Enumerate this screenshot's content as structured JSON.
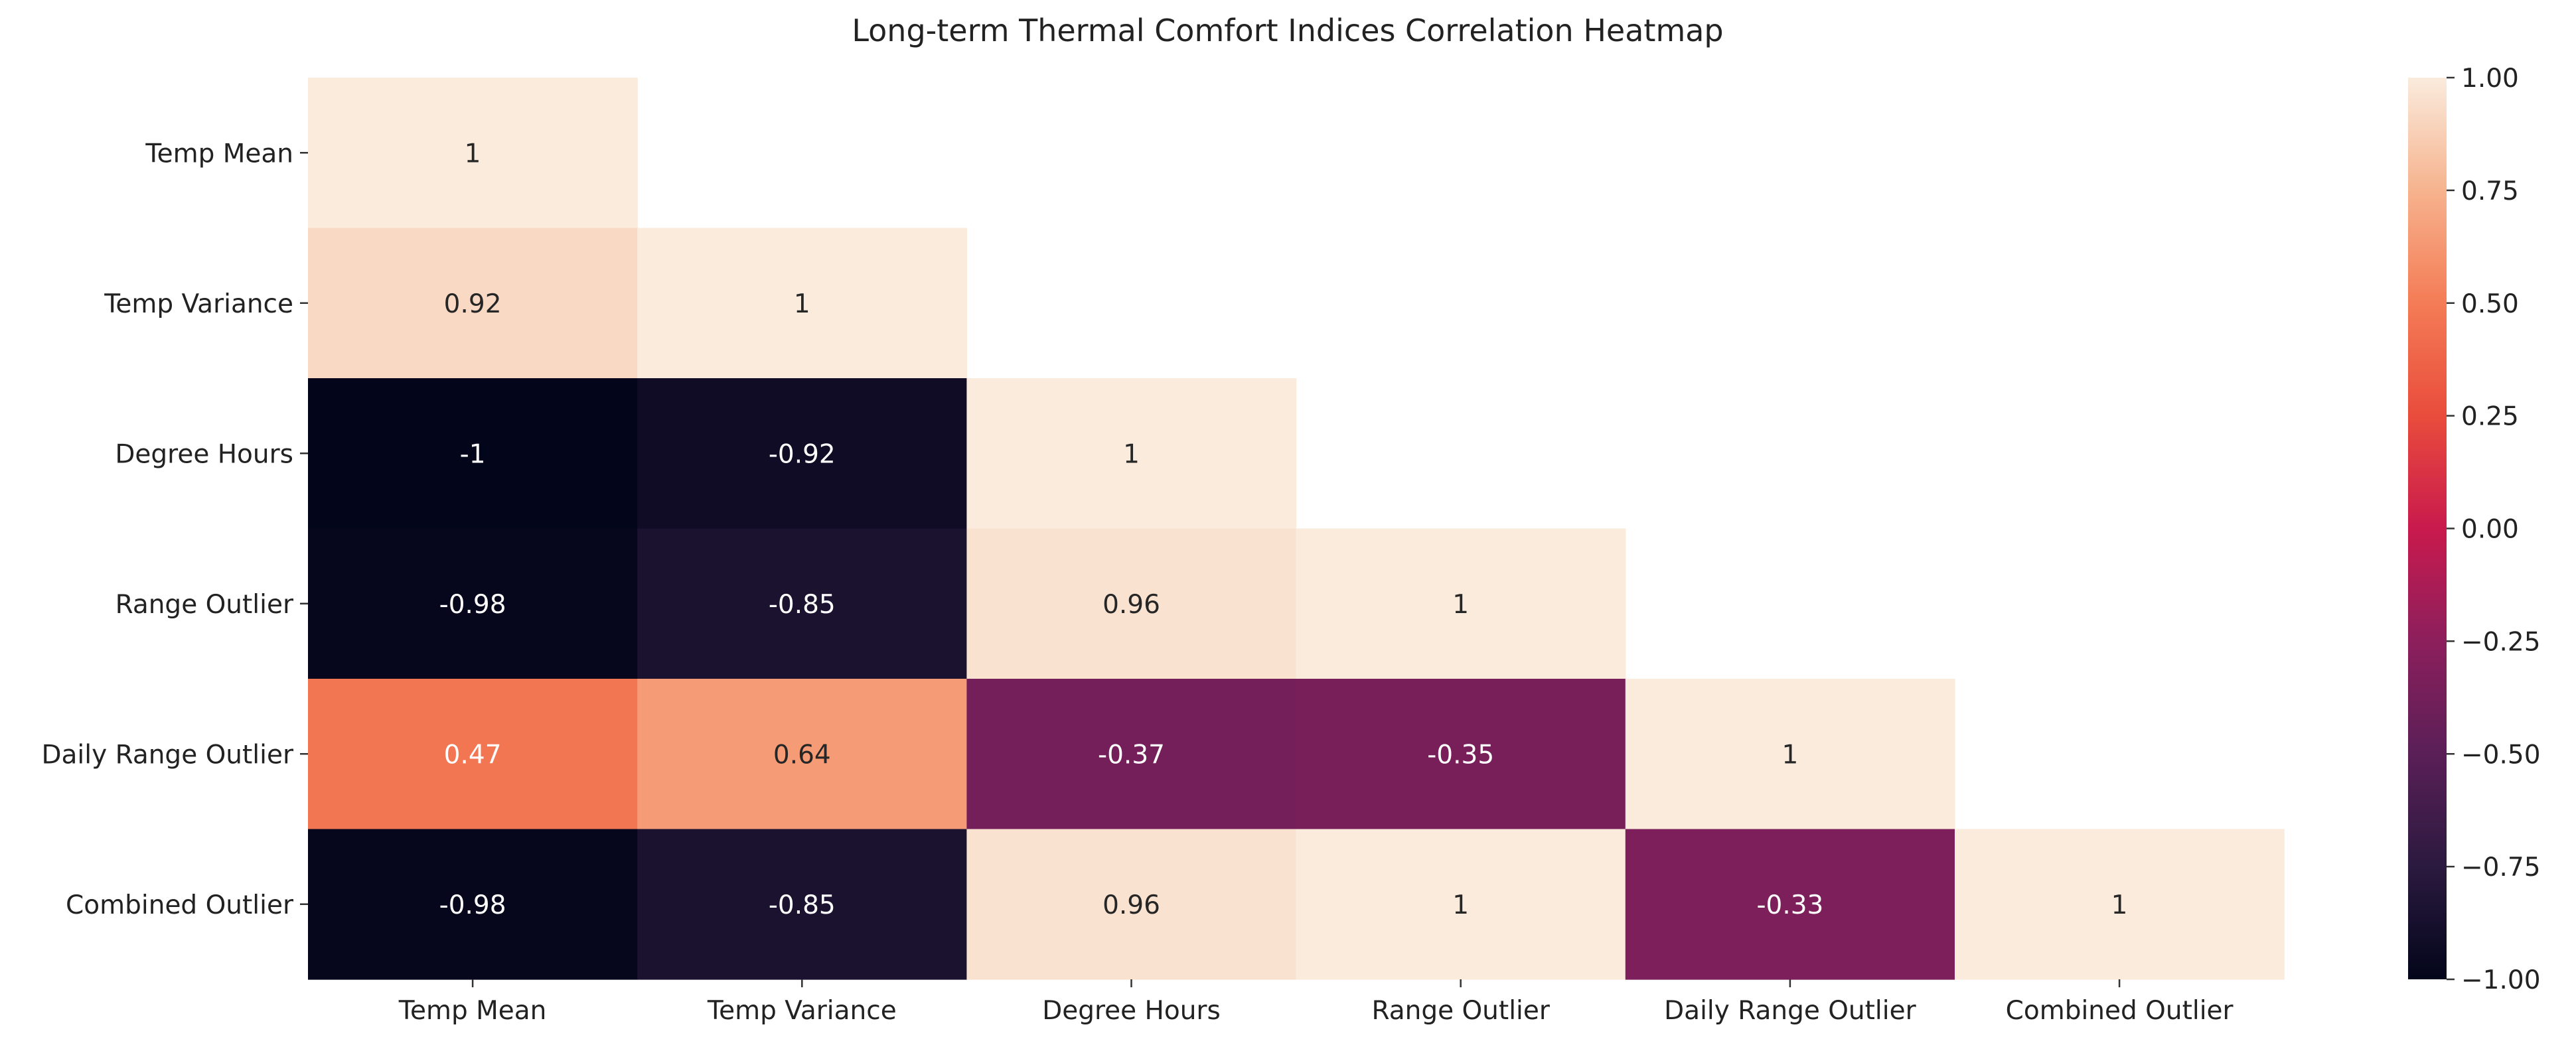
{
  "chart_data": {
    "type": "heatmap",
    "title": "Long-term Thermal Comfort Indices Correlation Heatmap",
    "xlabel": "",
    "ylabel": "",
    "x_labels": [
      "Temp Mean",
      "Temp Variance",
      "Degree Hours",
      "Range Outlier",
      "Daily Range Outlier",
      "Combined Outlier"
    ],
    "y_labels": [
      "Temp Mean",
      "Temp Variance",
      "Degree Hours",
      "Range Outlier",
      "Daily Range Outlier",
      "Combined Outlier"
    ],
    "mask": "upper triangle hidden (lower triangle incl. diagonal shown)",
    "matrix": [
      [
        1,
        null,
        null,
        null,
        null,
        null
      ],
      [
        0.92,
        1,
        null,
        null,
        null,
        null
      ],
      [
        -1,
        -0.92,
        1,
        null,
        null,
        null
      ],
      [
        -0.98,
        -0.85,
        0.96,
        1,
        null,
        null
      ],
      [
        0.47,
        0.64,
        -0.37,
        -0.35,
        1,
        null
      ],
      [
        -0.98,
        -0.85,
        0.96,
        1,
        -0.33,
        1
      ]
    ],
    "colorbar": {
      "vmin": -1.0,
      "vmax": 1.0,
      "ticks": [
        "1.00",
        "0.75",
        "0.50",
        "0.25",
        "0.00",
        "−0.25",
        "−0.50",
        "−0.75",
        "−1.00"
      ],
      "tick_values": [
        1.0,
        0.75,
        0.5,
        0.25,
        0.0,
        -0.25,
        -0.5,
        -0.75,
        -1.0
      ],
      "colormap": "rocket"
    }
  }
}
